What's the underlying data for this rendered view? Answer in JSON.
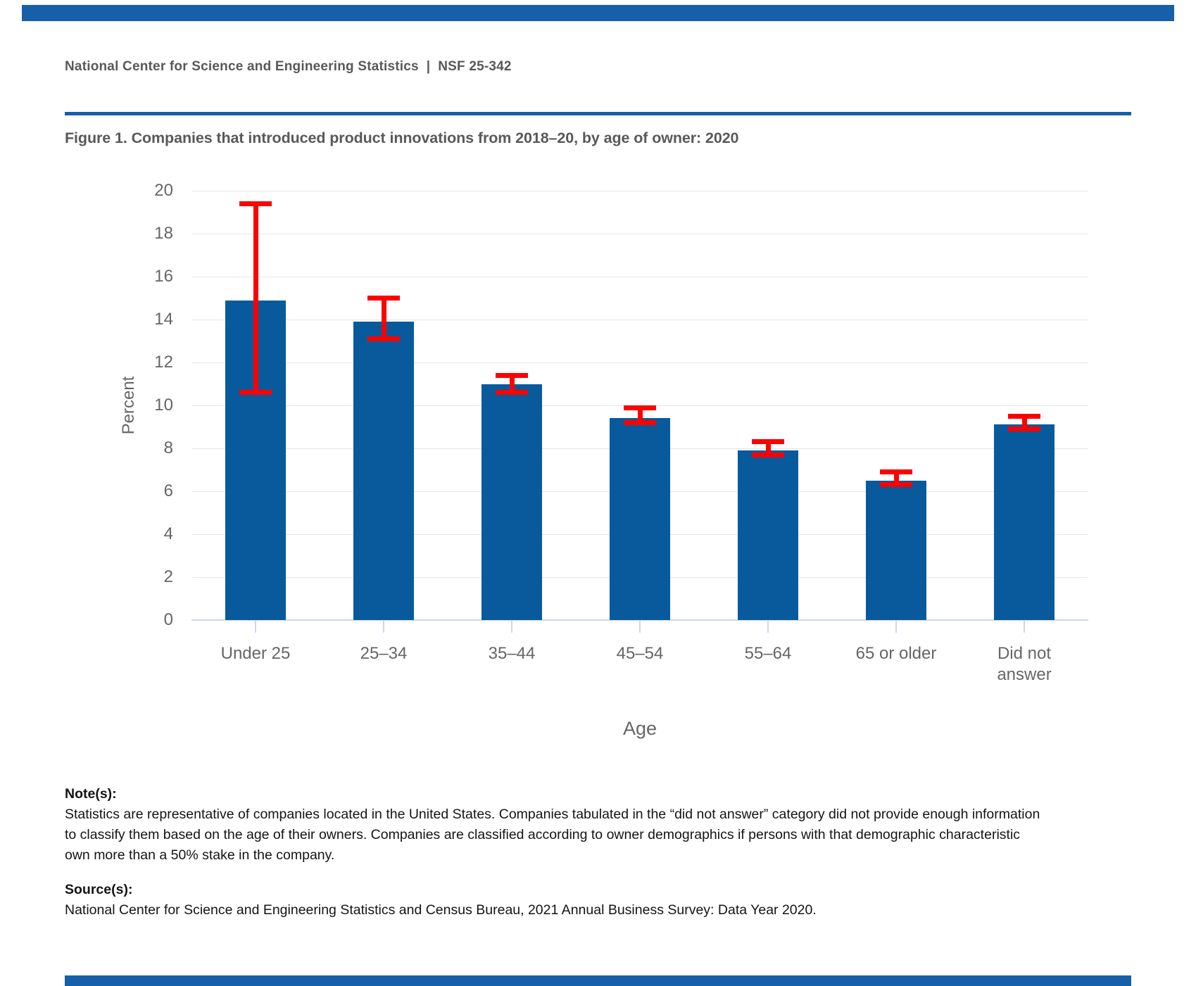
{
  "header": {
    "text": "National Center for Science and Engineering Statistics  |  NSF 25-342"
  },
  "figure_title": "Figure 1. Companies that introduced product innovations from 2018–20, by age of owner: 2020",
  "chart_data": {
    "type": "bar",
    "title": "Figure 1. Companies that introduced product innovations from 2018–20, by age of owner: 2020",
    "categories": [
      "Under 25",
      "25–34",
      "35–44",
      "45–54",
      "55–64",
      "65 or older",
      "Did not answer"
    ],
    "values": [
      14.9,
      13.9,
      11.0,
      9.4,
      7.9,
      6.5,
      9.1
    ],
    "error_low": [
      10.6,
      13.1,
      10.6,
      9.2,
      7.7,
      6.3,
      8.9
    ],
    "error_high": [
      19.4,
      15.0,
      11.4,
      9.9,
      8.3,
      6.9,
      9.5
    ],
    "xlabel": "Age",
    "ylabel": "Percent",
    "ylim": [
      0,
      20
    ],
    "yticks": [
      0,
      2,
      4,
      6,
      8,
      10,
      12,
      14,
      16,
      18,
      20
    ],
    "grid": true,
    "legend": "none",
    "bar_color": "#085a9c",
    "error_color": "#ff0000"
  },
  "notes": {
    "heading": "Note(s):",
    "lines": [
      "Statistics are representative of companies located in the United States. Companies tabulated in the “did not answer” category did not provide enough information",
      "to classify them based on the age of their owners. Companies are classified according to owner demographics if persons with that demographic characteristic",
      "own more than a 50% stake in the company."
    ]
  },
  "source": {
    "heading": "Source(s):",
    "lines": [
      "National Center for Science and Engineering Statistics and Census Bureau, 2021 Annual Business Survey: Data Year 2020."
    ]
  },
  "colors": {
    "accent": "#175fa8",
    "grid": "#e6e6e6",
    "axis": "#ccd6eb",
    "axis_text": "#666666",
    "heading_text": "#58595b",
    "body_text": "#141414"
  }
}
